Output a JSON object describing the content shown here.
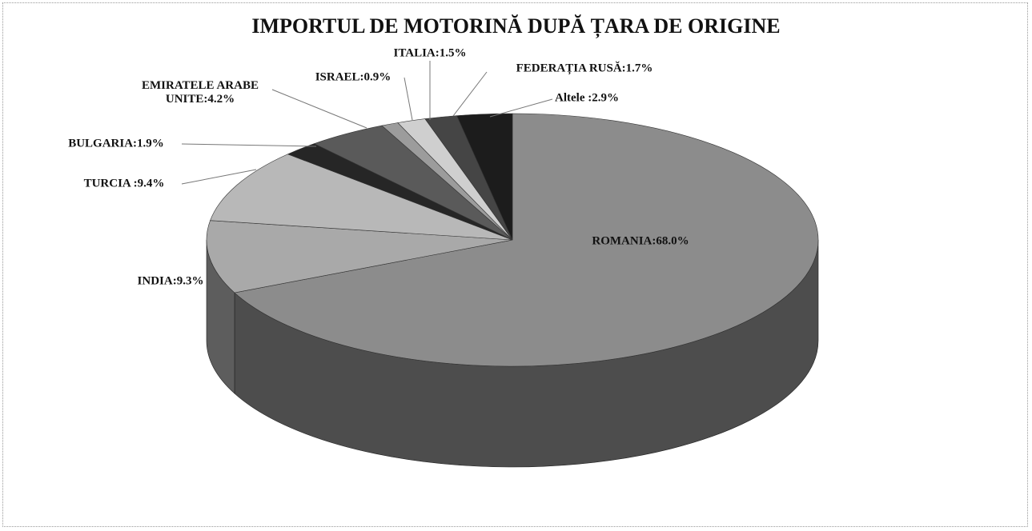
{
  "chart_data": {
    "type": "pie3d",
    "title": "IMPORTUL DE MOTORINĂ DUPĂ ȚARA DE ORIGINE",
    "values": [
      68.0,
      9.3,
      9.4,
      1.9,
      4.2,
      0.9,
      1.5,
      1.7,
      2.9
    ],
    "value_labels": [
      "ROMANIA:68.0%",
      "INDIA:9.3%",
      "TURCIA :9.4%",
      "BULGARIA:1.9%",
      "EMIRATELE ARABE UNITE:4.2%",
      "ISRAEL:0.9%",
      "ITALIA:1.5%",
      "FEDERAȚIA RUSĂ:1.7%",
      "Altele :2.9%"
    ],
    "colors": [
      "#8c8c8c",
      "#a9a9a9",
      "#b8b8b8",
      "#262626",
      "#5a5a5a",
      "#9c9c9c",
      "#cfcfcf",
      "#454545",
      "#1c1c1c"
    ]
  }
}
